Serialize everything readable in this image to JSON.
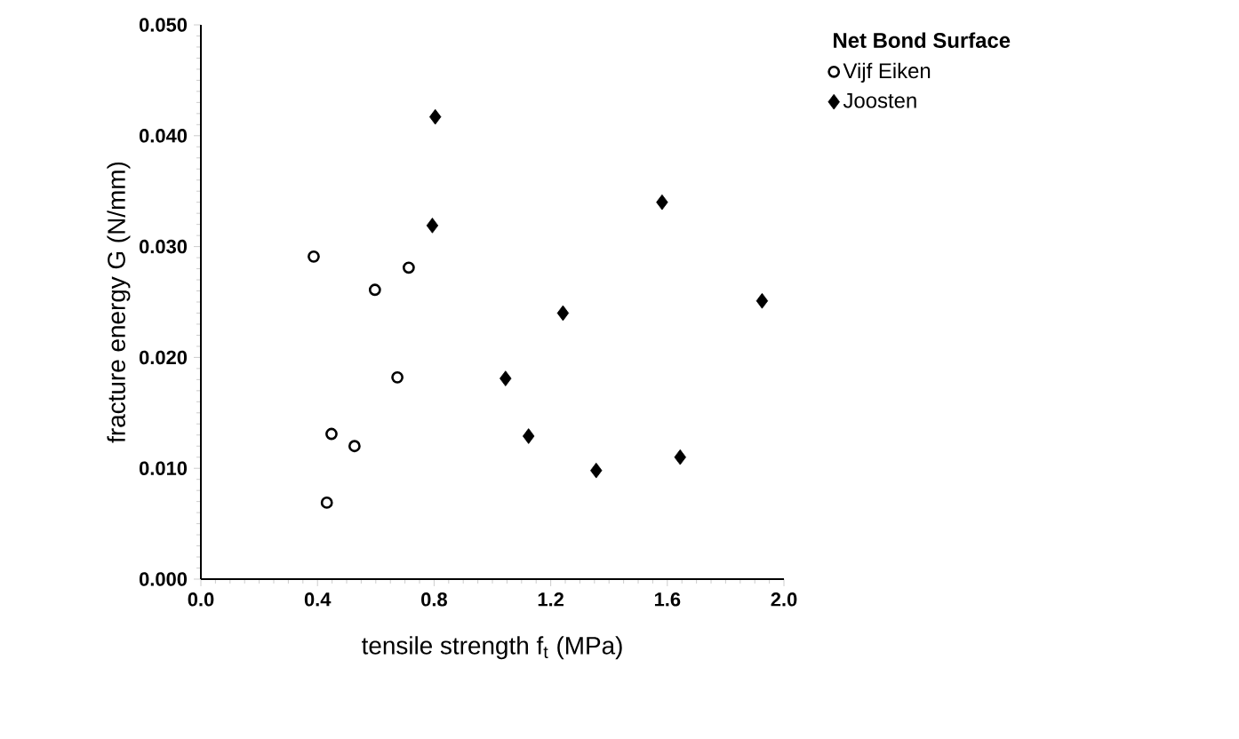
{
  "chart_data": {
    "type": "scatter",
    "xlabel": "tensile strength f$_{t}$  (MPa)",
    "ylabel": "fracture energy G  (N/mm)",
    "legend_title": "Net Bond Surface",
    "legend": "top right",
    "grid": false,
    "xlim": [
      0,
      2
    ],
    "ylim": [
      0,
      0.05
    ],
    "xticks": [
      {
        "value": 0,
        "label": "0.0"
      },
      {
        "value": 0.4,
        "label": "0.4"
      },
      {
        "value": 0.8,
        "label": "0.8"
      },
      {
        "value": 1.2,
        "label": "1.2"
      },
      {
        "value": 1.6,
        "label": "1.6"
      },
      {
        "value": 2,
        "label": "2.0"
      }
    ],
    "yticks": [
      {
        "value": 0,
        "label": "0.000"
      },
      {
        "value": 0.01,
        "label": "0.010"
      },
      {
        "value": 0.02,
        "label": "0.020"
      },
      {
        "value": 0.03,
        "label": "0.030"
      },
      {
        "value": 0.04,
        "label": "0.040"
      },
      {
        "value": 0.05,
        "label": "0.050"
      }
    ],
    "series": [
      {
        "name": "Vijf Eiken",
        "color": "#000000",
        "marker": "circle",
        "x": [
          0.387,
          0.432,
          0.448,
          0.527,
          0.597,
          0.674,
          0.713
        ],
        "values": [
          0.0291,
          0.0069,
          0.0131,
          0.012,
          0.0261,
          0.0182,
          0.0281
        ]
      },
      {
        "name": "Joosten",
        "color": "#000000",
        "marker": "diamond",
        "x": [
          0.804,
          0.794,
          1.045,
          1.124,
          1.242,
          1.356,
          1.582,
          1.644,
          1.925
        ],
        "values": [
          0.0417,
          0.0319,
          0.0181,
          0.0129,
          0.024,
          0.0098,
          0.034,
          0.011,
          0.0251
        ]
      }
    ]
  }
}
